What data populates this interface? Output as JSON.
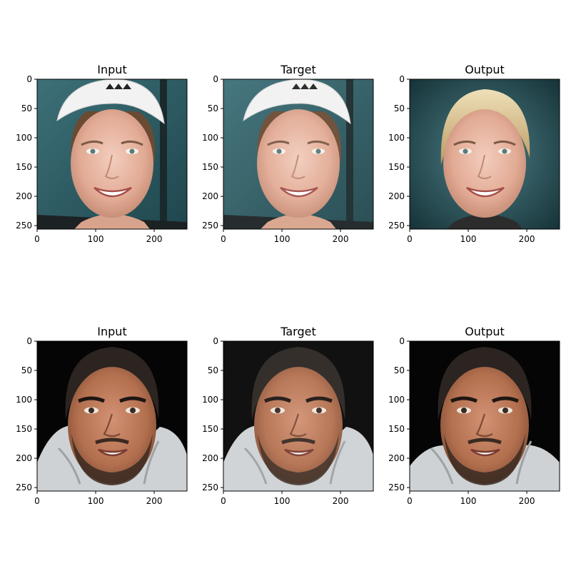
{
  "figure": {
    "panels": [
      {
        "title": "Input",
        "subject": "smiling young woman wearing a white sports visor, teal background",
        "variant": "input"
      },
      {
        "title": "Target",
        "subject": "smiling young woman wearing a white sports visor, teal background",
        "variant": "target"
      },
      {
        "title": "Output",
        "subject": "generated smiling young woman with blonde hair, blurred teal background",
        "variant": "output"
      },
      {
        "title": "Input",
        "subject": "smiling bearded man with dark hair wearing a grey hooded top, black background",
        "variant": "input"
      },
      {
        "title": "Target",
        "subject": "smiling bearded man with dark hair wearing a grey hooded top, black background",
        "variant": "target"
      },
      {
        "title": "Output",
        "subject": "generated bearded man with dark hair wearing a light top, dark background",
        "variant": "output"
      }
    ],
    "axes": {
      "xticks": [
        "0",
        "100",
        "200"
      ],
      "yticks": [
        "0",
        "50",
        "100",
        "150",
        "200",
        "250"
      ],
      "xtick_values": [
        0,
        100,
        200
      ],
      "ytick_values": [
        0,
        50,
        100,
        150,
        200,
        250
      ],
      "image_extent": [
        0,
        256
      ]
    },
    "colors": {
      "teal_bg": "#2f5f66",
      "skin_light": "#e9b8a4",
      "skin_tan": "#b8795a",
      "visor": "#f2f2f2",
      "blonde": "#d9c18e",
      "dark_hair": "#2b2420",
      "hoodie": "#cfd2d4",
      "black_bg": "#050505"
    }
  }
}
